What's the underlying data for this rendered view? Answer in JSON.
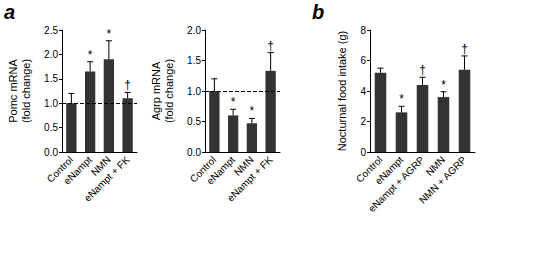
{
  "chart_data": [
    {
      "type": "bar",
      "panel": "a",
      "y_label": [
        "Pomc mRNA",
        "(fold change)"
      ],
      "categories": [
        "Control",
        "eNampt",
        "NMN",
        "eNampt + FK"
      ],
      "values": [
        1.0,
        1.65,
        1.9,
        1.1
      ],
      "errors": [
        0.2,
        0.2,
        0.38,
        0.12
      ],
      "annotations": [
        null,
        "*",
        "*",
        "†"
      ],
      "reference_line": 1.0,
      "color": "#333333",
      "ylim": [
        0,
        2.5
      ],
      "yticks": [
        {
          "value": 0,
          "label": "0.0"
        },
        {
          "value": 0.5,
          "label": "0.5"
        },
        {
          "value": 1,
          "label": "1.0"
        },
        {
          "value": 1.5,
          "label": "1.5"
        },
        {
          "value": 2,
          "label": "2.0"
        },
        {
          "value": 2.5,
          "label": "2.5"
        }
      ],
      "grid": false
    },
    {
      "type": "bar",
      "y_label": [
        "Agrp mRNA",
        "(fold change)"
      ],
      "categories": [
        "Control",
        "eNampt",
        "NMN",
        "eNampt + FK"
      ],
      "values": [
        1.0,
        0.6,
        0.47,
        1.33
      ],
      "errors": [
        0.2,
        0.1,
        0.08,
        0.3
      ],
      "annotations": [
        null,
        "*",
        "*",
        "†"
      ],
      "reference_line": 1.0,
      "color": "#333333",
      "ylim": [
        0,
        2.0
      ],
      "yticks": [
        {
          "value": 0,
          "label": "0.0"
        },
        {
          "value": 0.5,
          "label": "0.5"
        },
        {
          "value": 1,
          "label": "1.0"
        },
        {
          "value": 1.5,
          "label": "1.5"
        },
        {
          "value": 2,
          "label": "2.0"
        }
      ],
      "grid": false
    },
    {
      "type": "bar",
      "panel": "b",
      "y_label": [
        "Nocturnal food intake (g)"
      ],
      "categories": [
        "Control",
        "eNampt",
        "eNampt + AGRP",
        "NMN",
        "NMN + AGRP"
      ],
      "values": [
        5.2,
        2.6,
        4.4,
        3.6,
        5.4
      ],
      "errors": [
        0.3,
        0.4,
        0.5,
        0.35,
        0.9
      ],
      "annotations": [
        null,
        "*",
        "†",
        "*",
        "†"
      ],
      "color": "#333333",
      "ylim": [
        0,
        8
      ],
      "yticks": [
        0,
        2,
        4,
        6,
        8
      ],
      "grid": false
    }
  ]
}
